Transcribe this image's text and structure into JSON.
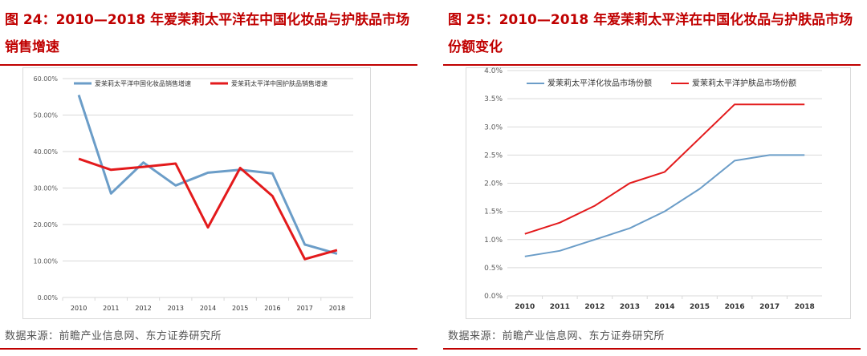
{
  "colors": {
    "accent": "#c00000",
    "series_blue": "#6b9dc8",
    "series_red": "#e31a1c",
    "grid": "#d9d9d9"
  },
  "chart_data": [
    {
      "type": "line",
      "title": "图 24：2010—2018 年爱茉莉太平洋在中国化妆品与护肤品市场销售增速",
      "categories": [
        "2010",
        "2011",
        "2012",
        "2013",
        "2014",
        "2015",
        "2016",
        "2017",
        "2018"
      ],
      "y_ticks": [
        "0.00%",
        "10.00%",
        "20.00%",
        "30.00%",
        "40.00%",
        "50.00%",
        "60.00%"
      ],
      "ylim": [
        0,
        60
      ],
      "legend_position": "top",
      "series": [
        {
          "name": "爱茉莉太平洋中国化妆品销售增速",
          "color": "#6b9dc8",
          "values": [
            55.5,
            28.5,
            37,
            30.7,
            34.2,
            35,
            34,
            14.5,
            12
          ]
        },
        {
          "name": "爱茉莉太平洋中国护肤品销售增速",
          "color": "#e31a1c",
          "values": [
            38,
            35,
            35.8,
            36.7,
            19.2,
            35.5,
            27.8,
            10.5,
            13
          ]
        }
      ],
      "source": "数据来源：前瞻产业信息网、东方证券研究所"
    },
    {
      "type": "line",
      "title": "图 25：2010—2018 年爱茉莉太平洋在中国化妆品与护肤品市场份额变化",
      "categories": [
        "2010",
        "2011",
        "2012",
        "2013",
        "2014",
        "2015",
        "2016",
        "2017",
        "2018"
      ],
      "y_ticks": [
        "0.0%",
        "0.5%",
        "1.0%",
        "1.5%",
        "2.0%",
        "2.5%",
        "3.0%",
        "3.5%",
        "4.0%"
      ],
      "ylim": [
        0,
        4
      ],
      "legend_position": "top",
      "series": [
        {
          "name": "爱茉莉太平洋化妆品市场份额",
          "color": "#6b9dc8",
          "values": [
            0.7,
            0.8,
            1.0,
            1.2,
            1.5,
            1.9,
            2.4,
            2.5,
            2.5
          ]
        },
        {
          "name": "爱茉莉太平洋护肤品市场份额",
          "color": "#e31a1c",
          "values": [
            1.1,
            1.3,
            1.6,
            2.0,
            2.2,
            2.8,
            3.4,
            3.4,
            3.4
          ]
        }
      ],
      "source": "数据来源：前瞻产业信息网、东方证券研究所"
    }
  ]
}
